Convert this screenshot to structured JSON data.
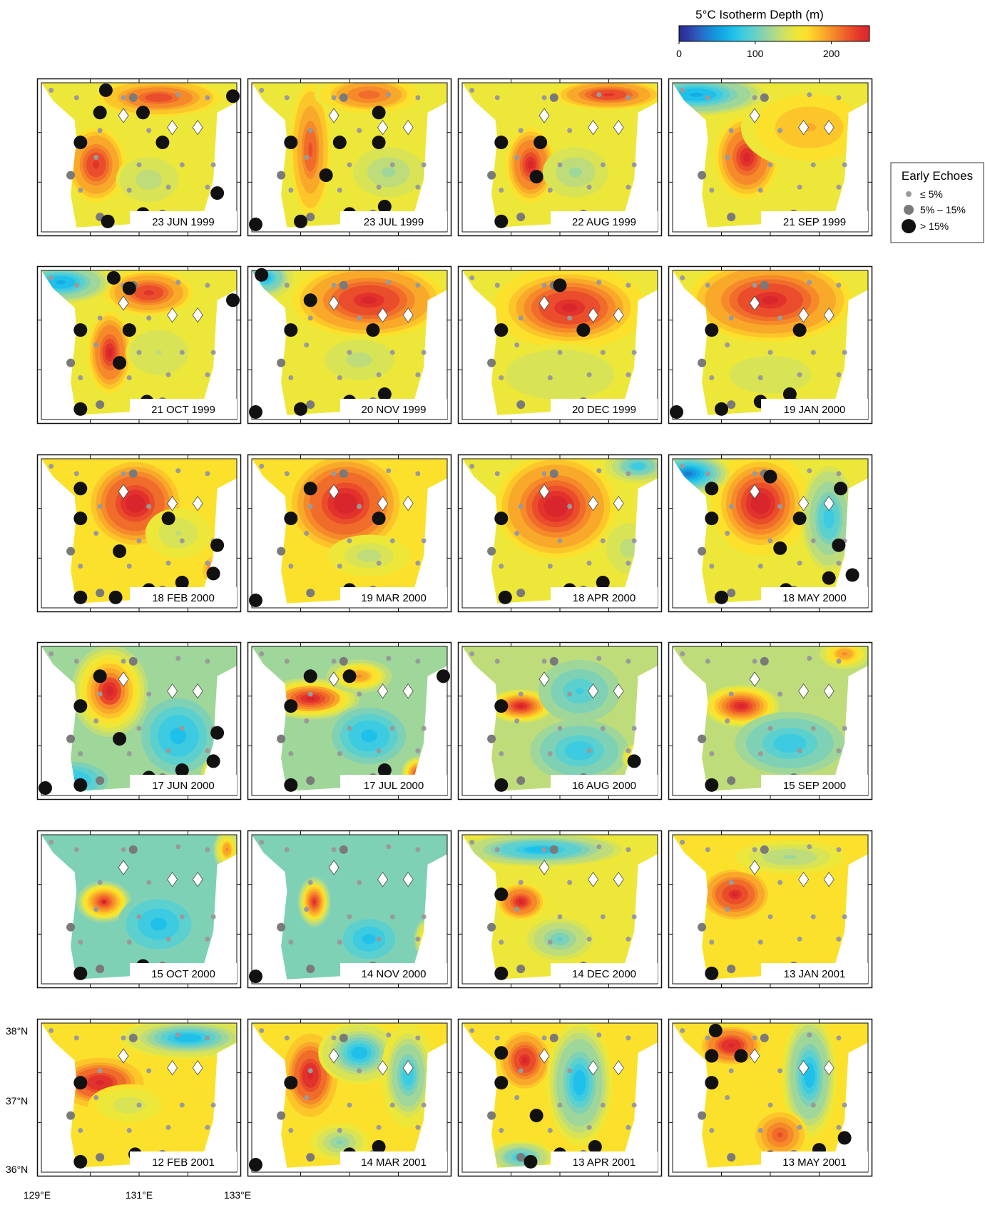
{
  "colorbar": {
    "title": "5°C Isotherm Depth (m)",
    "ticks": [
      {
        "value": 0,
        "label": "0"
      },
      {
        "value": 100,
        "label": "100"
      },
      {
        "value": 200,
        "label": "200"
      }
    ],
    "min": 0,
    "max": 250,
    "colors": [
      "#2b2a8f",
      "#2e3ea6",
      "#2f5bbf",
      "#1f7bd0",
      "#1497dc",
      "#14ade6",
      "#1fc0ea",
      "#3ccbe0",
      "#5bd0cf",
      "#7fd1b6",
      "#9fd69a",
      "#bedd7a",
      "#d8e355",
      "#ede73a",
      "#fbe12c",
      "#fcc62a",
      "#f9a92a",
      "#f68a2a",
      "#f06c2a",
      "#ea4d2b",
      "#e2322c",
      "#d8262c"
    ]
  },
  "legend": {
    "title": "Early Echoes",
    "items": [
      {
        "label": "≤ 5%",
        "kind": "small"
      },
      {
        "label": "5% – 15%",
        "kind": "medium"
      },
      {
        "label": "> 15%",
        "kind": "large"
      }
    ]
  },
  "axes": {
    "lat_labels": [
      "38°N",
      "37°N",
      "36°N"
    ],
    "lon_labels": [
      "129°E",
      "131°E",
      "133°E"
    ]
  },
  "panels": [
    {
      "date": "23 JUN 1999",
      "bg": 150,
      "hot": [
        [
          0.28,
          0.55,
          235,
          0.12,
          0.2
        ],
        [
          0.6,
          0.1,
          225,
          0.25,
          0.1
        ],
        [
          0.55,
          0.65,
          130,
          0.12,
          0.12
        ]
      ],
      "big": [
        [
          0.33,
          0.05
        ],
        [
          0.3,
          0.2
        ],
        [
          0.52,
          0.2
        ],
        [
          0.2,
          0.4
        ],
        [
          0.62,
          0.4
        ],
        [
          0.98,
          0.09
        ],
        [
          0.9,
          0.74
        ],
        [
          0.34,
          0.93
        ],
        [
          0.52,
          0.88
        ]
      ]
    },
    {
      "date": "23 JUL 1999",
      "bg": 150,
      "hot": [
        [
          0.3,
          0.45,
          220,
          0.08,
          0.35
        ],
        [
          0.6,
          0.08,
          215,
          0.2,
          0.1
        ],
        [
          0.7,
          0.6,
          120,
          0.13,
          0.12
        ]
      ],
      "big": [
        [
          0.65,
          0.2
        ],
        [
          0.2,
          0.4
        ],
        [
          0.45,
          0.4
        ],
        [
          0.65,
          0.4
        ],
        [
          0.38,
          0.62
        ],
        [
          0.02,
          0.95
        ],
        [
          0.25,
          0.93
        ],
        [
          0.5,
          0.88
        ],
        [
          0.68,
          0.83
        ]
      ]
    },
    {
      "date": "22 AUG 1999",
      "bg": 150,
      "hot": [
        [
          0.35,
          0.55,
          240,
          0.1,
          0.2
        ],
        [
          0.75,
          0.08,
          235,
          0.22,
          0.08
        ],
        [
          0.58,
          0.6,
          120,
          0.12,
          0.12
        ]
      ],
      "big": [
        [
          0.2,
          0.4
        ],
        [
          0.4,
          0.4
        ],
        [
          0.38,
          0.63
        ],
        [
          0.2,
          0.93
        ]
      ]
    },
    {
      "date": "21 SEP 1999",
      "bg": 150,
      "hot": [
        [
          0.38,
          0.5,
          240,
          0.13,
          0.22
        ],
        [
          0.7,
          0.3,
          185,
          0.25,
          0.2
        ],
        [
          0.12,
          0.08,
          60,
          0.25,
          0.1
        ]
      ],
      "big": []
    },
    {
      "date": "21 OCT 1999",
      "bg": 150,
      "hot": [
        [
          0.35,
          0.55,
          240,
          0.09,
          0.22
        ],
        [
          0.55,
          0.15,
          235,
          0.18,
          0.12
        ],
        [
          0.6,
          0.55,
          135,
          0.12,
          0.12
        ],
        [
          0.1,
          0.08,
          60,
          0.18,
          0.1
        ]
      ],
      "big": [
        [
          0.37,
          0.05
        ],
        [
          0.45,
          0.12
        ],
        [
          0.98,
          0.2
        ],
        [
          0.2,
          0.4
        ],
        [
          0.45,
          0.4
        ],
        [
          0.4,
          0.62
        ],
        [
          0.2,
          0.93
        ],
        [
          0.54,
          0.88
        ]
      ]
    },
    {
      "date": "20 NOV 1999",
      "bg": 155,
      "hot": [
        [
          0.6,
          0.2,
          245,
          0.28,
          0.18
        ],
        [
          0.55,
          0.6,
          130,
          0.16,
          0.12
        ],
        [
          0.07,
          0.05,
          70,
          0.1,
          0.1
        ]
      ],
      "big": [
        [
          0.05,
          0.03
        ],
        [
          0.3,
          0.2
        ],
        [
          0.62,
          0.4
        ],
        [
          0.2,
          0.4
        ],
        [
          0.02,
          0.95
        ],
        [
          0.25,
          0.93
        ],
        [
          0.5,
          0.88
        ],
        [
          0.68,
          0.83
        ]
      ]
    },
    {
      "date": "20 DEC 1999",
      "bg": 150,
      "hot": [
        [
          0.55,
          0.25,
          245,
          0.28,
          0.2
        ],
        [
          0.5,
          0.7,
          140,
          0.25,
          0.15
        ]
      ],
      "big": [
        [
          0.5,
          0.1
        ],
        [
          0.2,
          0.4
        ],
        [
          0.62,
          0.4
        ]
      ]
    },
    {
      "date": "19 JAN 2000",
      "bg": 155,
      "hot": [
        [
          0.5,
          0.2,
          245,
          0.3,
          0.2
        ],
        [
          0.5,
          0.7,
          140,
          0.25,
          0.15
        ]
      ],
      "big": [
        [
          0.2,
          0.4
        ],
        [
          0.65,
          0.4
        ],
        [
          0.02,
          0.95
        ],
        [
          0.25,
          0.93
        ],
        [
          0.45,
          0.88
        ],
        [
          0.6,
          0.83
        ]
      ]
    },
    {
      "date": "18 FEB 2000",
      "bg": 160,
      "hot": [
        [
          0.48,
          0.3,
          250,
          0.18,
          0.22
        ],
        [
          0.9,
          0.75,
          230,
          0.06,
          0.08
        ],
        [
          0.7,
          0.5,
          135,
          0.12,
          0.12
        ]
      ],
      "big": [
        [
          0.2,
          0.2
        ],
        [
          0.2,
          0.4
        ],
        [
          0.65,
          0.4
        ],
        [
          0.4,
          0.62
        ],
        [
          0.9,
          0.58
        ],
        [
          0.2,
          0.93
        ],
        [
          0.38,
          0.93
        ],
        [
          0.55,
          0.88
        ],
        [
          0.72,
          0.83
        ],
        [
          0.88,
          0.77
        ]
      ]
    },
    {
      "date": "19 MAR 2000",
      "bg": 160,
      "hot": [
        [
          0.48,
          0.3,
          250,
          0.22,
          0.25
        ],
        [
          0.6,
          0.65,
          130,
          0.15,
          0.1
        ]
      ],
      "big": [
        [
          0.3,
          0.2
        ],
        [
          0.2,
          0.4
        ],
        [
          0.65,
          0.4
        ],
        [
          0.02,
          0.95
        ],
        [
          0.5,
          0.88
        ]
      ]
    },
    {
      "date": "18 APR 2000",
      "bg": 155,
      "hot": [
        [
          0.48,
          0.32,
          250,
          0.22,
          0.25
        ],
        [
          0.85,
          0.6,
          130,
          0.1,
          0.15
        ],
        [
          0.9,
          0.05,
          80,
          0.12,
          0.08
        ]
      ],
      "big": [
        [
          0.2,
          0.4
        ],
        [
          0.22,
          0.93
        ],
        [
          0.55,
          0.88
        ],
        [
          0.72,
          0.83
        ]
      ]
    },
    {
      "date": "18 MAY 2000",
      "bg": 150,
      "hot": [
        [
          0.45,
          0.3,
          250,
          0.18,
          0.25
        ],
        [
          0.8,
          0.4,
          80,
          0.1,
          0.25
        ],
        [
          0.08,
          0.1,
          40,
          0.15,
          0.1
        ]
      ],
      "big": [
        [
          0.5,
          0.12
        ],
        [
          0.2,
          0.2
        ],
        [
          0.86,
          0.2
        ],
        [
          0.2,
          0.4
        ],
        [
          0.65,
          0.4
        ],
        [
          0.55,
          0.6
        ],
        [
          0.85,
          0.58
        ],
        [
          0.25,
          0.93
        ],
        [
          0.58,
          0.88
        ],
        [
          0.8,
          0.8
        ],
        [
          0.92,
          0.78
        ]
      ]
    },
    {
      "date": "17 JUN 2000",
      "bg": 120,
      "hot": [
        [
          0.35,
          0.3,
          240,
          0.14,
          0.22
        ],
        [
          0.7,
          0.6,
          70,
          0.15,
          0.2
        ],
        [
          0.15,
          0.9,
          70,
          0.15,
          0.1
        ],
        [
          0.9,
          0.85,
          230,
          0.06,
          0.08
        ]
      ],
      "big": [
        [
          0.3,
          0.2
        ],
        [
          0.2,
          0.4
        ],
        [
          0.4,
          0.62
        ],
        [
          0.9,
          0.58
        ],
        [
          0.02,
          0.95
        ],
        [
          0.2,
          0.93
        ],
        [
          0.55,
          0.88
        ],
        [
          0.72,
          0.83
        ],
        [
          0.88,
          0.77
        ]
      ]
    },
    {
      "date": "17 JUL 2000",
      "bg": 120,
      "hot": [
        [
          0.3,
          0.35,
          245,
          0.18,
          0.1
        ],
        [
          0.55,
          0.2,
          200,
          0.12,
          0.08
        ],
        [
          0.6,
          0.6,
          70,
          0.15,
          0.15
        ],
        [
          0.85,
          0.85,
          230,
          0.06,
          0.08
        ]
      ],
      "big": [
        [
          0.3,
          0.2
        ],
        [
          0.5,
          0.2
        ],
        [
          0.98,
          0.2
        ],
        [
          0.2,
          0.4
        ],
        [
          0.68,
          0.83
        ],
        [
          0.2,
          0.93
        ]
      ]
    },
    {
      "date": "16 AUG 2000",
      "bg": 125,
      "hot": [
        [
          0.3,
          0.4,
          240,
          0.12,
          0.08
        ],
        [
          0.6,
          0.3,
          90,
          0.15,
          0.15
        ],
        [
          0.6,
          0.7,
          80,
          0.18,
          0.15
        ],
        [
          0.9,
          0.75,
          210,
          0.06,
          0.08
        ]
      ],
      "big": [
        [
          0.2,
          0.4
        ],
        [
          0.88,
          0.77
        ],
        [
          0.2,
          0.93
        ]
      ]
    },
    {
      "date": "15 SEP 2000",
      "bg": 125,
      "hot": [
        [
          0.35,
          0.4,
          240,
          0.14,
          0.1
        ],
        [
          0.6,
          0.65,
          80,
          0.2,
          0.15
        ],
        [
          0.88,
          0.05,
          200,
          0.1,
          0.08
        ]
      ],
      "big": [
        [
          0.2,
          0.93
        ]
      ]
    },
    {
      "date": "15 OCT 2000",
      "bg": 110,
      "hot": [
        [
          0.32,
          0.45,
          240,
          0.1,
          0.1
        ],
        [
          0.6,
          0.6,
          75,
          0.15,
          0.15
        ],
        [
          0.95,
          0.1,
          200,
          0.05,
          0.1
        ]
      ],
      "big": [
        [
          0.2,
          0.93
        ],
        [
          0.52,
          0.88
        ]
      ]
    },
    {
      "date": "14 NOV 2000",
      "bg": 110,
      "hot": [
        [
          0.32,
          0.45,
          235,
          0.06,
          0.12
        ],
        [
          0.6,
          0.7,
          75,
          0.12,
          0.12
        ],
        [
          0.9,
          0.7,
          200,
          0.05,
          0.1
        ]
      ],
      "big": [
        [
          0.02,
          0.95
        ]
      ]
    },
    {
      "date": "14 DEC 2000",
      "bg": 150,
      "hot": [
        [
          0.3,
          0.45,
          240,
          0.1,
          0.1
        ],
        [
          0.5,
          0.7,
          100,
          0.12,
          0.1
        ],
        [
          0.4,
          0.1,
          70,
          0.3,
          0.08
        ]
      ],
      "big": [
        [
          0.2,
          0.4
        ],
        [
          0.2,
          0.93
        ]
      ]
    },
    {
      "date": "13 JAN 2001",
      "bg": 170,
      "hot": [
        [
          0.32,
          0.4,
          240,
          0.12,
          0.12
        ],
        [
          0.6,
          0.15,
          120,
          0.25,
          0.1
        ]
      ],
      "big": [
        [
          0.2,
          0.93
        ]
      ]
    },
    {
      "date": "12 FEB 2001",
      "bg": 165,
      "hot": [
        [
          0.3,
          0.4,
          245,
          0.16,
          0.12
        ],
        [
          0.75,
          0.1,
          70,
          0.25,
          0.1
        ],
        [
          0.45,
          0.55,
          140,
          0.15,
          0.1
        ]
      ],
      "big": [
        [
          0.2,
          0.4
        ],
        [
          0.2,
          0.93
        ],
        [
          0.48,
          0.88
        ]
      ]
    },
    {
      "date": "14 MAR 2001",
      "bg": 165,
      "hot": [
        [
          0.3,
          0.35,
          245,
          0.1,
          0.2
        ],
        [
          0.55,
          0.2,
          70,
          0.15,
          0.15
        ],
        [
          0.8,
          0.35,
          80,
          0.1,
          0.25
        ],
        [
          0.45,
          0.8,
          110,
          0.12,
          0.1
        ]
      ],
      "big": [
        [
          0.2,
          0.4
        ],
        [
          0.02,
          0.95
        ],
        [
          0.5,
          0.88
        ],
        [
          0.65,
          0.83
        ]
      ]
    },
    {
      "date": "13 APR 2001",
      "bg": 160,
      "hot": [
        [
          0.32,
          0.25,
          240,
          0.1,
          0.15
        ],
        [
          0.6,
          0.4,
          70,
          0.12,
          0.3
        ],
        [
          0.3,
          0.9,
          80,
          0.12,
          0.08
        ]
      ],
      "big": [
        [
          0.2,
          0.2
        ],
        [
          0.2,
          0.4
        ],
        [
          0.38,
          0.62
        ],
        [
          0.35,
          0.93
        ],
        [
          0.5,
          0.88
        ],
        [
          0.68,
          0.83
        ]
      ]
    },
    {
      "date": "13 MAY 2001",
      "bg": 160,
      "hot": [
        [
          0.3,
          0.15,
          245,
          0.12,
          0.1
        ],
        [
          0.7,
          0.35,
          70,
          0.1,
          0.3
        ],
        [
          0.55,
          0.75,
          220,
          0.1,
          0.12
        ]
      ],
      "big": [
        [
          0.22,
          0.05
        ],
        [
          0.2,
          0.22
        ],
        [
          0.35,
          0.22
        ],
        [
          0.2,
          0.4
        ],
        [
          0.5,
          0.9
        ],
        [
          0.75,
          0.85
        ],
        [
          0.88,
          0.77
        ]
      ]
    }
  ],
  "stations_small": [
    [
      0.05,
      0.05
    ],
    [
      0.18,
      0.1
    ],
    [
      0.42,
      0.1
    ],
    [
      0.7,
      0.08
    ],
    [
      0.85,
      0.1
    ],
    [
      0.3,
      0.32
    ],
    [
      0.55,
      0.32
    ],
    [
      0.8,
      0.32
    ],
    [
      0.28,
      0.5
    ],
    [
      0.5,
      0.55
    ],
    [
      0.72,
      0.55
    ],
    [
      0.88,
      0.55
    ],
    [
      0.2,
      0.72
    ],
    [
      0.45,
      0.72
    ],
    [
      0.65,
      0.7
    ],
    [
      0.85,
      0.7
    ]
  ],
  "stations_medium": [
    [
      0.47,
      0.1
    ],
    [
      0.15,
      0.62
    ],
    [
      0.62,
      0.88
    ],
    [
      0.3,
      0.9
    ]
  ],
  "diamonds": [
    [
      0.42,
      0.22
    ],
    [
      0.67,
      0.3
    ],
    [
      0.8,
      0.3
    ]
  ]
}
